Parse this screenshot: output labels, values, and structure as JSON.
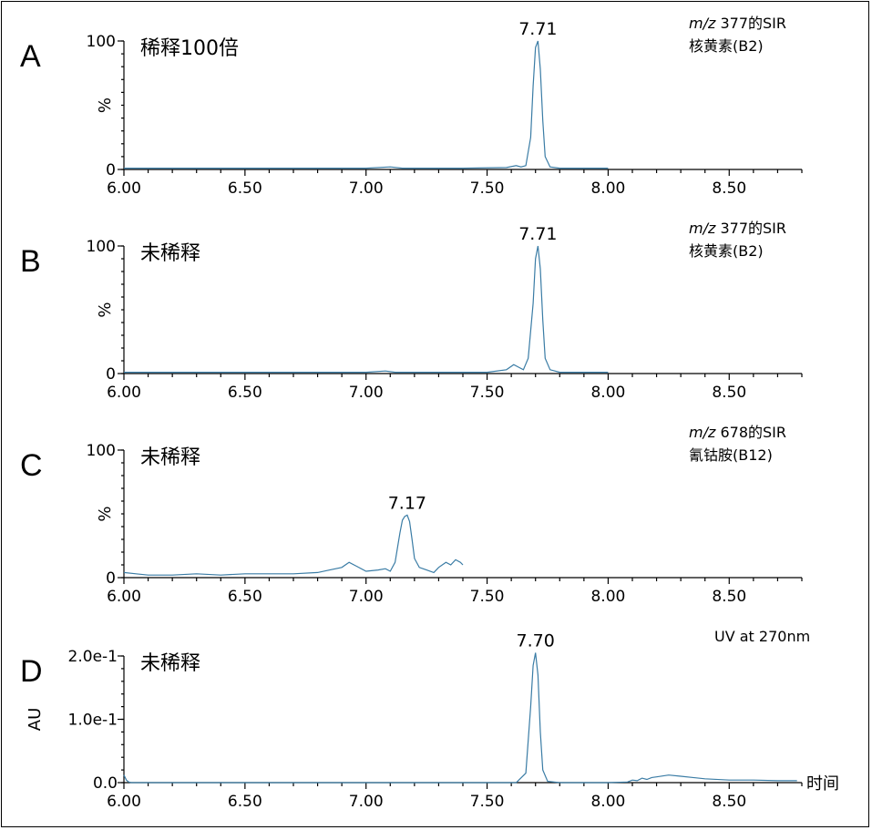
{
  "colors": {
    "trace": "#3a7ca5",
    "axis": "#000000"
  },
  "x_axis_label": "时间",
  "chart_data": [
    {
      "type": "line",
      "panel": "A",
      "condition": "稀释100倍",
      "info_line1_italic": "m/z",
      "info_line1_rest": " 377的SIR",
      "info_line2": "核黄素(B2)",
      "ylabel": "%",
      "yticks": [
        "100",
        "0"
      ],
      "ylim": [
        0,
        100
      ],
      "xlim": [
        6.0,
        8.8
      ],
      "xticks": [
        "6.00",
        "6.50",
        "7.00",
        "7.50",
        "8.00",
        "8.50"
      ],
      "peak_label": "7.71",
      "series": [
        {
          "x": [
            6.0,
            6.5,
            7.0,
            7.1,
            7.15,
            7.2,
            7.4,
            7.58,
            7.62,
            7.64,
            7.66,
            7.68,
            7.69,
            7.7,
            7.71,
            7.72,
            7.73,
            7.74,
            7.76,
            7.8,
            7.9,
            8.0
          ],
          "y": [
            1,
            1,
            1,
            2,
            1,
            1,
            1,
            1.5,
            3,
            2,
            3,
            25,
            65,
            95,
            100,
            78,
            38,
            10,
            2,
            1,
            1,
            1
          ]
        }
      ]
    },
    {
      "type": "line",
      "panel": "B",
      "condition": "未稀释",
      "info_line1_italic": "m/z",
      "info_line1_rest": " 377的SIR",
      "info_line2": "核黄素(B2)",
      "ylabel": "%",
      "yticks": [
        "100",
        "0"
      ],
      "ylim": [
        0,
        100
      ],
      "xlim": [
        6.0,
        8.8
      ],
      "xticks": [
        "6.00",
        "6.50",
        "7.00",
        "7.50",
        "8.00",
        "8.50"
      ],
      "peak_label": "7.71",
      "series": [
        {
          "x": [
            6.0,
            6.5,
            7.0,
            7.08,
            7.12,
            7.2,
            7.5,
            7.58,
            7.61,
            7.63,
            7.65,
            7.67,
            7.69,
            7.7,
            7.71,
            7.72,
            7.73,
            7.74,
            7.76,
            7.8,
            7.9,
            8.0
          ],
          "y": [
            1,
            1,
            1,
            2,
            1,
            1,
            1,
            3,
            7,
            5,
            3,
            12,
            55,
            90,
            100,
            82,
            42,
            12,
            3,
            1,
            1,
            1
          ]
        }
      ]
    },
    {
      "type": "line",
      "panel": "C",
      "condition": "未稀释",
      "info_line1_italic": "m/z",
      "info_line1_rest": " 678的SIR",
      "info_line2": "氰钴胺(B12)",
      "ylabel": "%",
      "yticks": [
        "100",
        "0"
      ],
      "ylim": [
        0,
        100
      ],
      "xlim": [
        6.0,
        8.8
      ],
      "xticks": [
        "6.00",
        "6.50",
        "7.00",
        "7.50",
        "8.00",
        "8.50"
      ],
      "peak_label": "7.17",
      "series": [
        {
          "x": [
            6.0,
            6.05,
            6.1,
            6.2,
            6.3,
            6.4,
            6.5,
            6.6,
            6.7,
            6.8,
            6.85,
            6.9,
            6.93,
            6.96,
            7.0,
            7.05,
            7.08,
            7.1,
            7.12,
            7.14,
            7.15,
            7.16,
            7.17,
            7.18,
            7.19,
            7.2,
            7.22,
            7.25,
            7.28,
            7.3,
            7.33,
            7.35,
            7.37,
            7.39,
            7.4
          ],
          "y": [
            4,
            3,
            2,
            2,
            3,
            2,
            3,
            3,
            3,
            4,
            6,
            8,
            12,
            9,
            5,
            6,
            7,
            5,
            12,
            35,
            45,
            48,
            49,
            44,
            30,
            15,
            8,
            6,
            4,
            8,
            12,
            10,
            14,
            12,
            10
          ]
        }
      ]
    },
    {
      "type": "line",
      "panel": "D",
      "condition": "未稀释",
      "info_line1_italic": "",
      "info_line1_rest": "UV at 270nm",
      "info_line2": "",
      "ylabel": "AU",
      "yticks": [
        "2.0e-1",
        "1.0e-1",
        "0.0"
      ],
      "ylim": [
        0,
        0.2
      ],
      "xlim": [
        6.0,
        8.8
      ],
      "xticks": [
        "6.00",
        "6.50",
        "7.00",
        "7.50",
        "8.00",
        "8.50"
      ],
      "peak_label": "7.70",
      "series": [
        {
          "x": [
            6.0,
            6.01,
            6.02,
            6.03,
            6.2,
            6.5,
            7.0,
            7.5,
            7.62,
            7.66,
            7.68,
            7.69,
            7.7,
            7.71,
            7.72,
            7.73,
            7.75,
            7.8,
            8.0,
            8.08,
            8.1,
            8.12,
            8.14,
            8.16,
            8.18,
            8.2,
            8.25,
            8.3,
            8.4,
            8.5,
            8.6,
            8.7,
            8.78
          ],
          "y": [
            0.012,
            0.004,
            0.001,
            0.0,
            0.0,
            0.0,
            0.0,
            0.0,
            0.0,
            0.015,
            0.12,
            0.185,
            0.205,
            0.17,
            0.08,
            0.02,
            0.002,
            0.0,
            0.0,
            0.001,
            0.004,
            0.003,
            0.007,
            0.005,
            0.008,
            0.009,
            0.012,
            0.01,
            0.006,
            0.004,
            0.004,
            0.003,
            0.003
          ]
        }
      ]
    }
  ]
}
